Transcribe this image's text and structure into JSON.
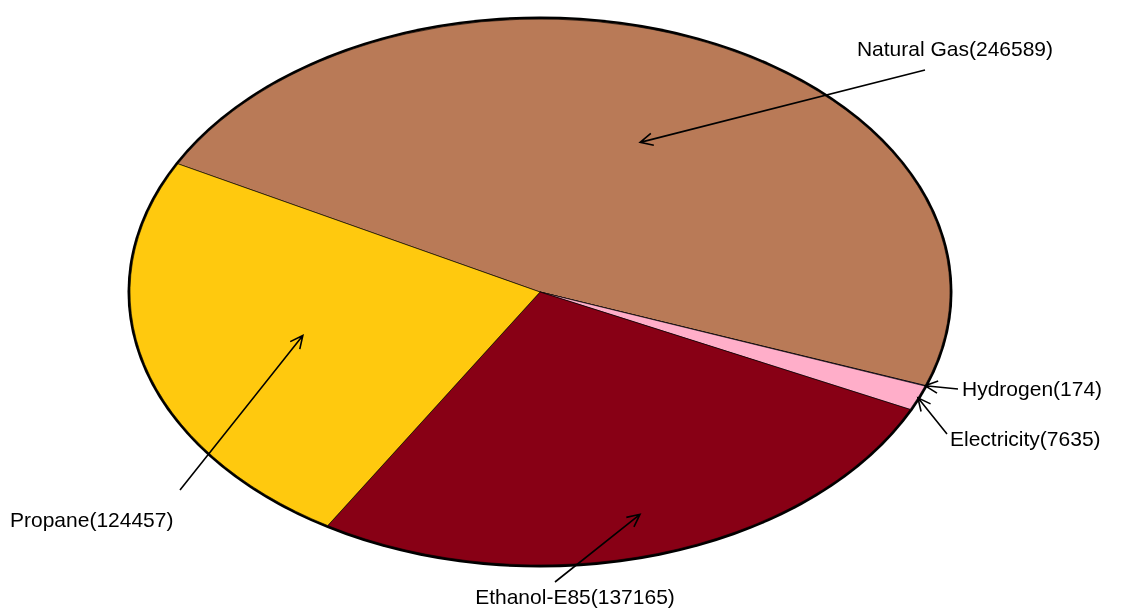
{
  "chart_data": {
    "type": "pie",
    "categories": [
      "Natural Gas",
      "Hydrogen",
      "Electricity",
      "Ethanol-E85",
      "Propane"
    ],
    "values": [
      246589,
      174,
      7635,
      137165,
      124457
    ],
    "colors": [
      "#b97a57",
      "#3f48cc",
      "#ffaec9",
      "#880015",
      "#ffc90e"
    ],
    "value_labels": [
      "(246589)",
      "(174)",
      "(7635)",
      "(137165)",
      "(124457)"
    ]
  }
}
